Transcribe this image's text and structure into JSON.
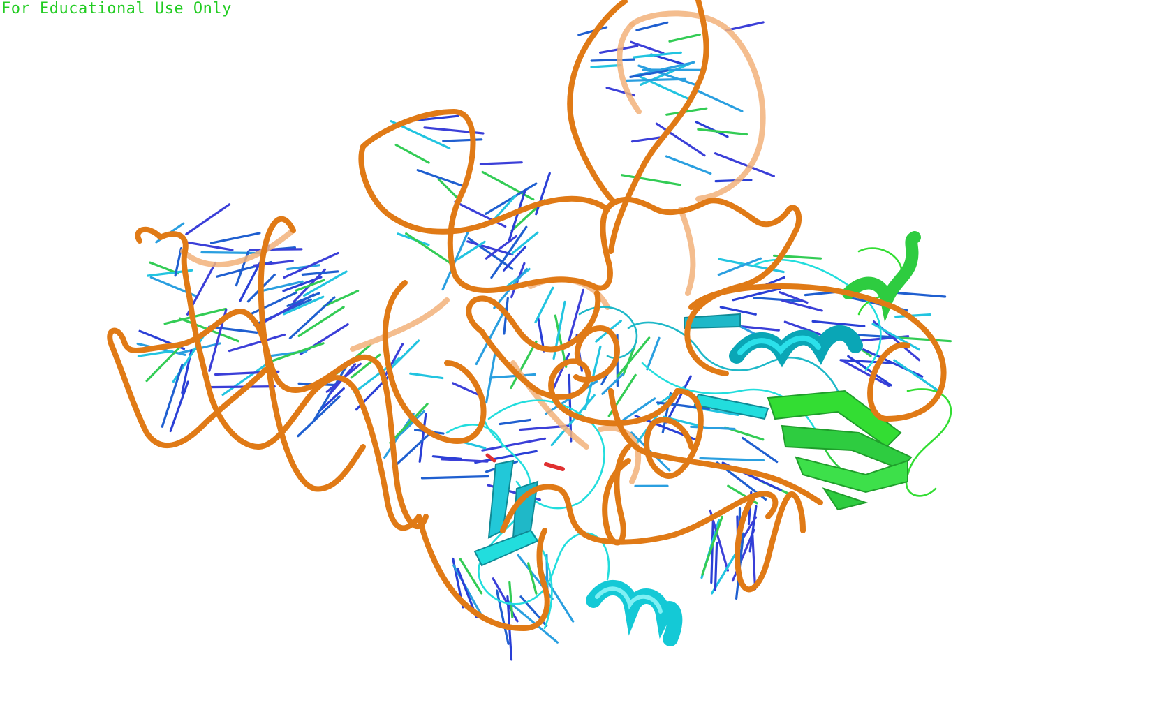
{
  "watermark": {
    "text": "For Educational Use Only"
  },
  "colors": {
    "background": "#ffffff",
    "watermark": "#22cc22",
    "rna_backbone": "#e07a16",
    "rna_backbone_far": "#f2b27a",
    "protein_chain_a": "#22dddd",
    "protein_chain_b": "#33dd33",
    "base_blue": "#2a3fd6",
    "base_cyan": "#22c4e0",
    "base_green": "#33cc55",
    "highlight_red": "#e03030"
  },
  "scene": {
    "representation": "cartoon",
    "molecules": [
      "rna",
      "protein-chain-cyan",
      "protein-chain-green"
    ]
  }
}
